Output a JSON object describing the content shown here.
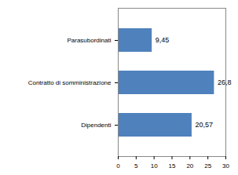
{
  "chart_data": {
    "type": "bar",
    "orientation": "horizontal",
    "categories": [
      "Parasubordinati",
      "Contratto di somministrazione",
      "Dipendenti"
    ],
    "values": [
      9.45,
      26.8,
      20.57
    ],
    "value_labels": [
      "9,45",
      "26,8",
      "20,57"
    ],
    "data_labels": true,
    "color": "#4f81bd",
    "xlim": [
      0,
      30
    ],
    "xticks": [
      0,
      5,
      10,
      15,
      20,
      25,
      30
    ],
    "grid": false
  }
}
